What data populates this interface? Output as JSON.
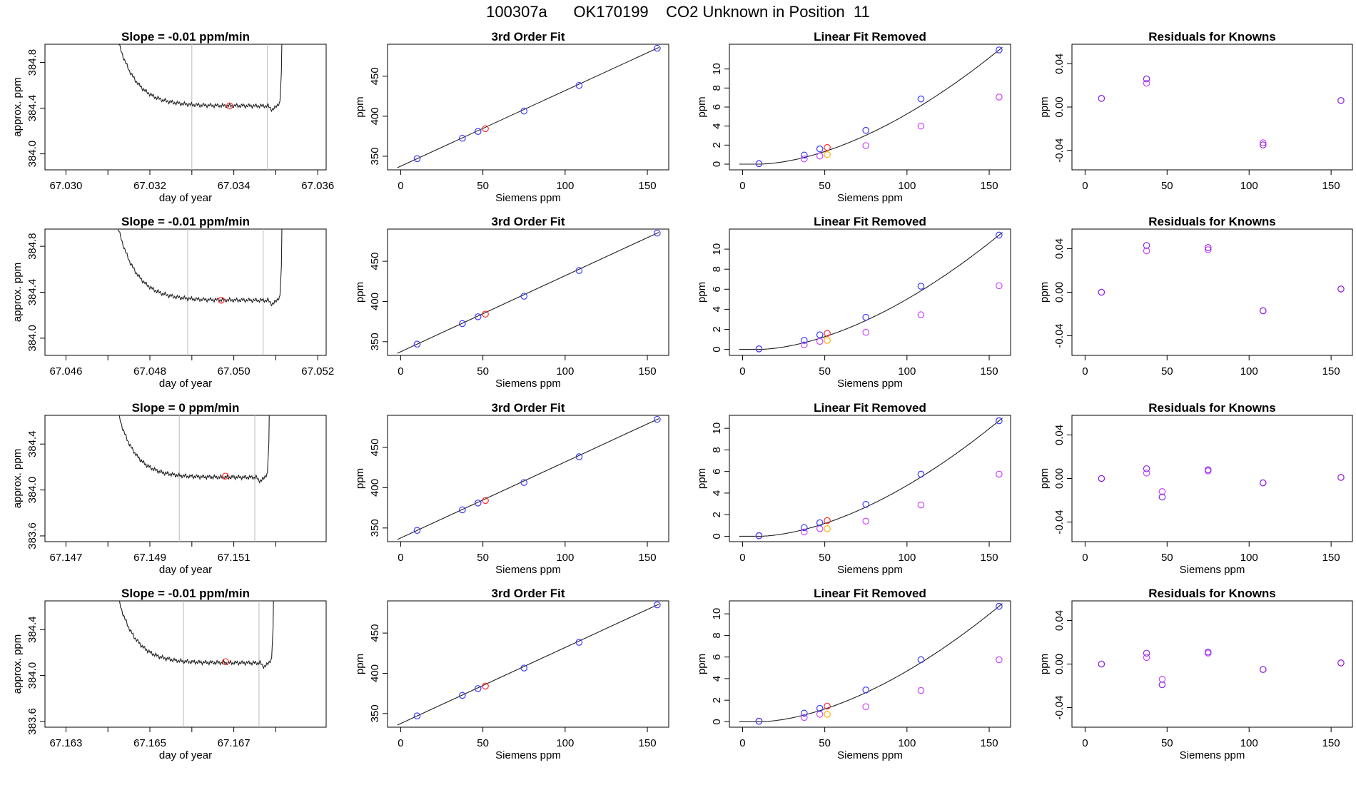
{
  "page": {
    "title": "100307a      OK170199    CO2 Unknown in Position  11"
  },
  "colors": {
    "blue": "#3b3bff",
    "red": "#ff2a2a",
    "orange": "#ffb000",
    "violet": "#cc44ff",
    "purple": "#8a2be2",
    "line": "#222222",
    "vline": "#bbbbbb"
  },
  "rows": [
    {
      "ts": {
        "title": "Slope =  -0.01  ppm/min",
        "xlabel": "day of year",
        "ylabel": "approx. ppm",
        "xlim": [
          67.0295,
          67.0362
        ],
        "ylim": [
          383.86,
          384.96
        ],
        "xticks": [
          67.03,
          67.032,
          67.034,
          67.036
        ],
        "xtick_labels": [
          "67.030",
          "67.032",
          "67.034",
          "67.036"
        ],
        "xminor": [
          67.031,
          67.033,
          67.035
        ],
        "yticks": [
          384.0,
          384.4,
          384.8
        ],
        "ytick_labels": [
          "384.0",
          "384.4",
          "384.8"
        ],
        "vlines": [
          67.033,
          67.0348
        ],
        "trace_start": 67.0311,
        "trace_end": 67.0351,
        "plateau": 384.42,
        "start_level": 385.2,
        "red_point": [
          67.0339,
          384.42
        ]
      },
      "fit": {
        "title": "3rd Order Fit",
        "xlabel": "Siemens ppm",
        "ylabel": "ppm",
        "xlim": [
          -8,
          163
        ],
        "ylim": [
          333,
          490
        ],
        "xticks": [
          0,
          50,
          100,
          150
        ],
        "xtick_labels": [
          "0",
          "50",
          "100",
          "150"
        ],
        "yticks": [
          350,
          400,
          450
        ],
        "ytick_labels": [
          "350",
          "400",
          "450"
        ],
        "x": [
          10,
          37.5,
          47,
          75,
          108.5,
          156
        ],
        "y": [
          347,
          372.5,
          381,
          406.5,
          438.5,
          485
        ],
        "red_point": [
          51.5,
          384.4
        ]
      },
      "lin": {
        "title": "Linear Fit Removed",
        "xlabel": "Siemens ppm",
        "ylabel": "ppm",
        "xlim": [
          -8,
          163
        ],
        "ylim": [
          -0.6,
          12.6
        ],
        "xticks": [
          0,
          50,
          100,
          150
        ],
        "xtick_labels": [
          "0",
          "50",
          "100",
          "150"
        ],
        "yticks": [
          0,
          2,
          4,
          6,
          8,
          10
        ],
        "ytick_labels": [
          "0",
          "2",
          "4",
          "6",
          "8",
          "10"
        ],
        "x": [
          10,
          37.5,
          47,
          75,
          108.5,
          156
        ],
        "blue": [
          0.05,
          0.95,
          1.6,
          3.55,
          6.85,
          12.0
        ],
        "violet": [
          0.05,
          0.55,
          0.85,
          1.95,
          4.0,
          7.05
        ],
        "red": [
          51.5,
          1.75
        ],
        "orange": [
          51.5,
          1.0
        ]
      },
      "res": {
        "title": "Residuals for Knowns",
        "xlabel": "",
        "ylabel": "ppm",
        "xlim": [
          -8,
          163
        ],
        "ylim": [
          -0.058,
          0.058
        ],
        "xticks": [
          0,
          50,
          100,
          150
        ],
        "xtick_labels": [
          "0",
          "50",
          "100",
          "150"
        ],
        "yticks": [
          -0.04,
          0.0,
          0.04
        ],
        "ytick_labels": [
          "-0.04",
          "0.00",
          "0.04"
        ],
        "x": [
          10,
          37.5,
          108.5,
          156
        ],
        "blue": [
          0.008,
          0.026,
          -0.035,
          0.006
        ],
        "violet": [
          0.008,
          0.022,
          -0.033,
          0.006
        ]
      }
    },
    {
      "ts": {
        "title": "Slope =  -0.01  ppm/min",
        "xlabel": "day of year",
        "ylabel": "approx. ppm",
        "xlim": [
          67.0455,
          67.0522
        ],
        "ylim": [
          383.85,
          384.95
        ],
        "xticks": [
          67.046,
          67.048,
          67.05,
          67.052
        ],
        "xtick_labels": [
          "67.046",
          "67.048",
          "67.050",
          "67.052"
        ],
        "xminor": [
          67.047,
          67.049,
          67.051
        ],
        "yticks": [
          384.0,
          384.4,
          384.8
        ],
        "ytick_labels": [
          "384.0",
          "384.4",
          "384.8"
        ],
        "vlines": [
          67.0489,
          67.0507
        ],
        "trace_start": 67.0471,
        "trace_end": 67.0511,
        "plateau": 384.33,
        "start_level": 385.2,
        "red_point": [
          67.0497,
          384.33
        ]
      },
      "fit": {
        "title": "3rd Order Fit",
        "xlabel": "Siemens ppm",
        "ylabel": "ppm",
        "xlim": [
          -8,
          163
        ],
        "ylim": [
          333,
          490
        ],
        "xticks": [
          0,
          50,
          100,
          150
        ],
        "xtick_labels": [
          "0",
          "50",
          "100",
          "150"
        ],
        "yticks": [
          350,
          400,
          450
        ],
        "ytick_labels": [
          "350",
          "400",
          "450"
        ],
        "x": [
          10,
          37.5,
          47,
          75,
          108.5,
          156
        ],
        "y": [
          347,
          372.5,
          381,
          406.5,
          438.5,
          485
        ],
        "red_point": [
          51.5,
          384.3
        ]
      },
      "lin": {
        "title": "Linear Fit Removed",
        "xlabel": "Siemens ppm",
        "ylabel": "ppm",
        "xlim": [
          -8,
          163
        ],
        "ylim": [
          -0.6,
          12.0
        ],
        "xticks": [
          0,
          50,
          100,
          150
        ],
        "xtick_labels": [
          "0",
          "50",
          "100",
          "150"
        ],
        "yticks": [
          0,
          2,
          4,
          6,
          8,
          10
        ],
        "ytick_labels": [
          "0",
          "2",
          "4",
          "6",
          "8",
          "10"
        ],
        "x": [
          10,
          37.5,
          47,
          75,
          108.5,
          156
        ],
        "blue": [
          0.05,
          0.9,
          1.45,
          3.2,
          6.3,
          11.4
        ],
        "violet": [
          0.05,
          0.45,
          0.8,
          1.7,
          3.45,
          6.35
        ],
        "red": [
          51.5,
          1.6
        ],
        "orange": [
          51.5,
          0.9
        ]
      },
      "res": {
        "title": "Residuals for Knowns",
        "xlabel": "",
        "ylabel": "ppm",
        "xlim": [
          -8,
          163
        ],
        "ylim": [
          -0.058,
          0.058
        ],
        "xticks": [
          0,
          50,
          100,
          150
        ],
        "xtick_labels": [
          "0",
          "50",
          "100",
          "150"
        ],
        "yticks": [
          -0.04,
          0.0,
          0.04
        ],
        "ytick_labels": [
          "-0.04",
          "0.00",
          "0.04"
        ],
        "x": [
          10,
          37.5,
          75,
          108.5,
          156
        ],
        "blue": [
          0.0,
          0.043,
          0.041,
          -0.017,
          0.003
        ],
        "violet": [
          0.0,
          0.038,
          0.039,
          -0.017,
          0.003
        ]
      }
    },
    {
      "ts": {
        "title": "Slope =  0  ppm/min",
        "xlabel": "day of year",
        "ylabel": "approx. ppm",
        "xlim": [
          67.1465,
          67.1532
        ],
        "ylim": [
          383.55,
          384.65
        ],
        "xticks": [
          67.147,
          67.149,
          67.151
        ],
        "xtick_labels": [
          "67.147",
          "67.149",
          "67.151"
        ],
        "xminor": [
          67.148,
          67.15,
          67.152
        ],
        "yticks": [
          383.6,
          384.0,
          384.4
        ],
        "ytick_labels": [
          "383.6",
          "384.0",
          "384.4"
        ],
        "vlines": [
          67.1497,
          67.1515
        ],
        "trace_start": 67.1481,
        "trace_end": 67.1518,
        "plateau": 384.11,
        "start_level": 384.9,
        "red_point": [
          67.1508,
          384.12
        ]
      },
      "fit": {
        "title": "3rd Order Fit",
        "xlabel": "Siemens ppm",
        "ylabel": "ppm",
        "xlim": [
          -8,
          163
        ],
        "ylim": [
          333,
          490
        ],
        "xticks": [
          0,
          50,
          100,
          150
        ],
        "xtick_labels": [
          "0",
          "50",
          "100",
          "150"
        ],
        "yticks": [
          350,
          400,
          450
        ],
        "ytick_labels": [
          "350",
          "400",
          "450"
        ],
        "x": [
          10,
          37.5,
          47,
          75,
          108.5,
          156
        ],
        "y": [
          347,
          372.5,
          381,
          406.5,
          438.5,
          485
        ],
        "red_point": [
          51.5,
          384.1
        ]
      },
      "lin": {
        "title": "Linear Fit Removed",
        "xlabel": "Siemens ppm",
        "ylabel": "ppm",
        "xlim": [
          -8,
          163
        ],
        "ylim": [
          -0.5,
          11.2
        ],
        "xticks": [
          0,
          50,
          100,
          150
        ],
        "xtick_labels": [
          "0",
          "50",
          "100",
          "150"
        ],
        "yticks": [
          0,
          2,
          4,
          6,
          8,
          10
        ],
        "ytick_labels": [
          "0",
          "2",
          "4",
          "6",
          "8",
          "10"
        ],
        "x": [
          10,
          37.5,
          47,
          75,
          108.5,
          156
        ],
        "blue": [
          0.05,
          0.8,
          1.25,
          2.95,
          5.75,
          10.7
        ],
        "violet": [
          0.05,
          0.4,
          0.7,
          1.4,
          2.9,
          5.75
        ],
        "red": [
          51.5,
          1.45
        ],
        "orange": [
          51.5,
          0.7
        ]
      },
      "res": {
        "title": "Residuals for Knowns",
        "xlabel": "Siemens ppm",
        "ylabel": "ppm",
        "xlim": [
          -8,
          163
        ],
        "ylim": [
          -0.058,
          0.058
        ],
        "xticks": [
          0,
          50,
          100,
          150
        ],
        "xtick_labels": [
          "0",
          "50",
          "100",
          "150"
        ],
        "yticks": [
          -0.04,
          0.0,
          0.04
        ],
        "ytick_labels": [
          "-0.04",
          "0.00",
          "0.04"
        ],
        "x": [
          10,
          37.5,
          47,
          75,
          108.5,
          156
        ],
        "blue": [
          0.0,
          0.009,
          -0.017,
          0.008,
          -0.004,
          0.001
        ],
        "violet": [
          0.0,
          0.005,
          -0.012,
          0.007,
          -0.004,
          0.001
        ]
      }
    },
    {
      "ts": {
        "title": "Slope =  -0.01  ppm/min",
        "xlabel": "day of year",
        "ylabel": "approx. ppm",
        "xlim": [
          67.1625,
          67.1692
        ],
        "ylim": [
          383.55,
          384.65
        ],
        "xticks": [
          67.163,
          67.165,
          67.167
        ],
        "xtick_labels": [
          "67.163",
          "67.165",
          "67.167"
        ],
        "xminor": [
          67.164,
          67.166,
          67.168
        ],
        "yticks": [
          383.6,
          384.0,
          384.4
        ],
        "ytick_labels": [
          "383.6",
          "384.0",
          "384.4"
        ],
        "vlines": [
          67.1658,
          67.1676
        ],
        "trace_start": 67.1641,
        "trace_end": 67.1679,
        "plateau": 384.11,
        "start_level": 384.9,
        "red_point": [
          67.1668,
          384.12
        ]
      },
      "fit": {
        "title": "3rd Order Fit",
        "xlabel": "Siemens ppm",
        "ylabel": "ppm",
        "xlim": [
          -8,
          163
        ],
        "ylim": [
          333,
          490
        ],
        "xticks": [
          0,
          50,
          100,
          150
        ],
        "xtick_labels": [
          "0",
          "50",
          "100",
          "150"
        ],
        "yticks": [
          350,
          400,
          450
        ],
        "ytick_labels": [
          "350",
          "400",
          "450"
        ],
        "x": [
          10,
          37.5,
          47,
          75,
          108.5,
          156
        ],
        "y": [
          347,
          372.5,
          381,
          406.5,
          438.5,
          485
        ],
        "red_point": [
          51.5,
          384.1
        ]
      },
      "lin": {
        "title": "Linear Fit Removed",
        "xlabel": "Siemens ppm",
        "ylabel": "ppm",
        "xlim": [
          -8,
          163
        ],
        "ylim": [
          -0.5,
          11.2
        ],
        "xticks": [
          0,
          50,
          100,
          150
        ],
        "xtick_labels": [
          "0",
          "50",
          "100",
          "150"
        ],
        "yticks": [
          0,
          2,
          4,
          6,
          8,
          10
        ],
        "ytick_labels": [
          "0",
          "2",
          "4",
          "6",
          "8",
          "10"
        ],
        "x": [
          10,
          37.5,
          47,
          75,
          108.5,
          156
        ],
        "blue": [
          0.05,
          0.8,
          1.25,
          2.95,
          5.75,
          10.7
        ],
        "violet": [
          0.05,
          0.4,
          0.7,
          1.4,
          2.9,
          5.75
        ],
        "red": [
          51.5,
          1.45
        ],
        "orange": [
          51.5,
          0.7
        ]
      },
      "res": {
        "title": "Residuals for Knowns",
        "xlabel": "Siemens ppm",
        "ylabel": "ppm",
        "xlim": [
          -8,
          163
        ],
        "ylim": [
          -0.058,
          0.058
        ],
        "xticks": [
          0,
          50,
          100,
          150
        ],
        "xtick_labels": [
          "0",
          "50",
          "100",
          "150"
        ],
        "yticks": [
          -0.04,
          0.0,
          0.04
        ],
        "ytick_labels": [
          "-0.04",
          "0.00",
          "0.04"
        ],
        "x": [
          10,
          37.5,
          47,
          75,
          108.5,
          156
        ],
        "blue": [
          0.0,
          0.01,
          -0.019,
          0.011,
          -0.005,
          0.001
        ],
        "violet": [
          0.0,
          0.006,
          -0.014,
          0.01,
          -0.005,
          0.001
        ]
      }
    }
  ]
}
